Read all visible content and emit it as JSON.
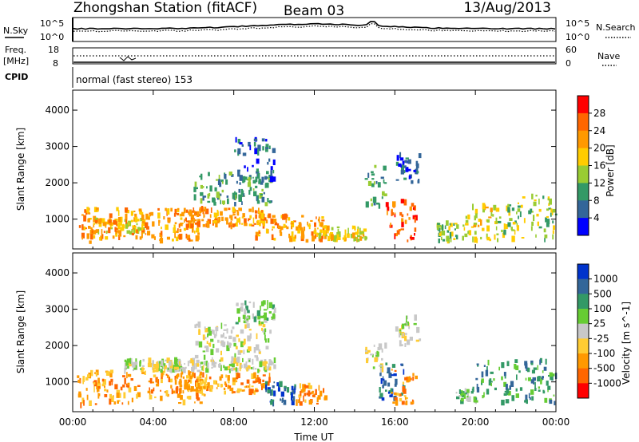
{
  "header": {
    "station": "Zhongshan Station (fitACF)",
    "beam": "Beam 03",
    "date": "13/Aug/2013"
  },
  "noise_panel": {
    "left_label": "N.Sky",
    "right_label": "N.Search",
    "left_ticks": [
      "10^5",
      "10^0"
    ],
    "right_ticks": [
      "10^5",
      "10^0"
    ]
  },
  "freq_panel": {
    "left_label_1": "Freq.",
    "left_label_2": "[MHz]",
    "right_label": "Nave",
    "left_ticks": [
      "18",
      "8"
    ],
    "right_ticks": [
      "60",
      "0"
    ]
  },
  "cpid": {
    "label": "CPID",
    "mode": "normal (fast stereo) 153"
  },
  "chart_data": [
    {
      "type": "heatmap",
      "title": "",
      "xlabel": "",
      "ylabel": "Slant Range [km]",
      "colorbar_label": "Power [dB]",
      "colorbar_ticks": [
        "28",
        "24",
        "20",
        "16",
        "12",
        "8",
        "4"
      ],
      "colorbar_colors": [
        "#ff0000",
        "#ff6600",
        "#ff9900",
        "#ffcc00",
        "#99cc33",
        "#339966",
        "#336699",
        "#0000ff"
      ],
      "x_ticks": [
        "00:00",
        "04:00",
        "08:00",
        "12:00",
        "16:00",
        "20:00",
        "00:00"
      ],
      "y_ticks": [
        "1000",
        "2000",
        "3000",
        "4000"
      ],
      "xlim_hours": [
        0,
        24
      ],
      "ylim_km": [
        180,
        4550
      ],
      "clusters": [
        {
          "t": [
            0.2,
            1.2
          ],
          "r": [
            350,
            1300
          ],
          "level": 5
        },
        {
          "t": [
            1.0,
            3.5
          ],
          "r": [
            600,
            1000
          ],
          "level": 4
        },
        {
          "t": [
            1.0,
            6.5
          ],
          "r": [
            400,
            1300
          ],
          "level": 5
        },
        {
          "t": [
            5.0,
            9.5
          ],
          "r": [
            800,
            1300
          ],
          "level": 5
        },
        {
          "t": [
            6.0,
            9.8
          ],
          "r": [
            1400,
            2300
          ],
          "level": 2
        },
        {
          "t": [
            8.0,
            10.0
          ],
          "r": [
            2000,
            3200
          ],
          "level": 1
        },
        {
          "t": [
            9.0,
            12.5
          ],
          "r": [
            400,
            1100
          ],
          "level": 5
        },
        {
          "t": [
            12.0,
            14.5
          ],
          "r": [
            400,
            800
          ],
          "level": 4
        },
        {
          "t": [
            14.5,
            15.5
          ],
          "r": [
            1300,
            2500
          ],
          "level": 2
        },
        {
          "t": [
            15.5,
            17.0
          ],
          "r": [
            400,
            1500
          ],
          "level": 6
        },
        {
          "t": [
            16.0,
            17.2
          ],
          "r": [
            2000,
            2800
          ],
          "level": 1
        },
        {
          "t": [
            18.0,
            19.5
          ],
          "r": [
            400,
            900
          ],
          "level": 3
        },
        {
          "t": [
            19.5,
            21.0
          ],
          "r": [
            400,
            1400
          ],
          "level": 4
        },
        {
          "t": [
            21.0,
            22.5
          ],
          "r": [
            400,
            1600
          ],
          "level": 3
        },
        {
          "t": [
            22.5,
            24.0
          ],
          "r": [
            400,
            1700
          ],
          "level": 3
        }
      ]
    },
    {
      "type": "heatmap",
      "title": "",
      "xlabel": "Time UT",
      "ylabel": "Slant Range [km]",
      "colorbar_label": "Velocity [m s^-1]",
      "colorbar_ticks": [
        "1000",
        "500",
        "100",
        "25",
        "-25",
        "-100",
        "-500",
        "-1000"
      ],
      "colorbar_colors": [
        "#0033cc",
        "#336699",
        "#339966",
        "#66cc33",
        "#c8c8c8",
        "#ffcc33",
        "#ff9900",
        "#ff6600",
        "#ff0000"
      ],
      "x_ticks": [
        "00:00",
        "04:00",
        "08:00",
        "12:00",
        "16:00",
        "20:00",
        "00:00"
      ],
      "y_ticks": [
        "1000",
        "2000",
        "3000",
        "4000"
      ],
      "xlim_hours": [
        0,
        24
      ],
      "ylim_km": [
        180,
        4550
      ],
      "clusters": [
        {
          "t": [
            0.2,
            1.2
          ],
          "r": [
            350,
            1300
          ],
          "level": 6
        },
        {
          "t": [
            1.0,
            6.5
          ],
          "r": [
            400,
            1300
          ],
          "level": 6
        },
        {
          "t": [
            2.5,
            10.0
          ],
          "r": [
            1300,
            1600
          ],
          "level": 4
        },
        {
          "t": [
            5.0,
            9.8
          ],
          "r": [
            700,
            1200
          ],
          "level": 6
        },
        {
          "t": [
            6.0,
            9.8
          ],
          "r": [
            1600,
            2600
          ],
          "level": 4
        },
        {
          "t": [
            8.0,
            10.0
          ],
          "r": [
            2600,
            3200
          ],
          "level": 3
        },
        {
          "t": [
            9.5,
            11.0
          ],
          "r": [
            400,
            1000
          ],
          "level": 1
        },
        {
          "t": [
            11.0,
            12.5
          ],
          "r": [
            400,
            900
          ],
          "level": 6
        },
        {
          "t": [
            14.5,
            15.5
          ],
          "r": [
            1300,
            2000
          ],
          "level": 4
        },
        {
          "t": [
            15.2,
            16.5
          ],
          "r": [
            500,
            1500
          ],
          "level": 1
        },
        {
          "t": [
            15.8,
            17.0
          ],
          "r": [
            400,
            1400
          ],
          "level": 6
        },
        {
          "t": [
            16.0,
            17.2
          ],
          "r": [
            2000,
            2800
          ],
          "level": 4
        },
        {
          "t": [
            19.0,
            20.0
          ],
          "r": [
            400,
            800
          ],
          "level": 3
        },
        {
          "t": [
            20.0,
            24.0
          ],
          "r": [
            400,
            1600
          ],
          "level": 2
        }
      ]
    }
  ]
}
